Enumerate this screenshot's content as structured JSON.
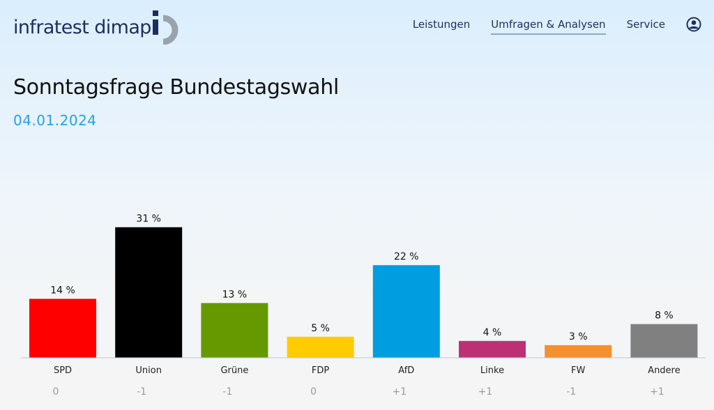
{
  "brand": {
    "name": "infratest dimap",
    "colors": {
      "text": "#1b2f5e",
      "mark_dark": "#1b2f5e",
      "mark_grey": "#9aa3ab"
    }
  },
  "nav": {
    "items": [
      {
        "label": "Leistungen",
        "active": false
      },
      {
        "label": "Umfragen & Analysen",
        "active": true
      },
      {
        "label": "Service",
        "active": false
      }
    ],
    "user_icon": "user-circle-icon"
  },
  "page": {
    "title": "Sonntagsfrage Bundestagswahl",
    "date": "04.01.2024",
    "accent_color": "#2aa0e0"
  },
  "chart_data": {
    "type": "bar",
    "title": "Sonntagsfrage Bundestagswahl",
    "xlabel": "",
    "ylabel": "",
    "ylim": [
      0,
      35
    ],
    "grid": false,
    "legend": "none",
    "unit": "%",
    "categories": [
      "SPD",
      "Union",
      "Grüne",
      "FDP",
      "AfD",
      "Linke",
      "FW",
      "Andere"
    ],
    "values": [
      14,
      31,
      13,
      5,
      22,
      4,
      3,
      8
    ],
    "value_labels": [
      "14 %",
      "31 %",
      "13 %",
      "5 %",
      "22 %",
      "4 %",
      "3 %",
      "8 %"
    ],
    "changes": [
      "0",
      "-1",
      "-1",
      "0",
      "+1",
      "+1",
      "-1",
      "+1"
    ],
    "colors": [
      "#ff0000",
      "#000000",
      "#669900",
      "#ffcc00",
      "#009ee0",
      "#be3075",
      "#f68f2e",
      "#808080"
    ]
  }
}
